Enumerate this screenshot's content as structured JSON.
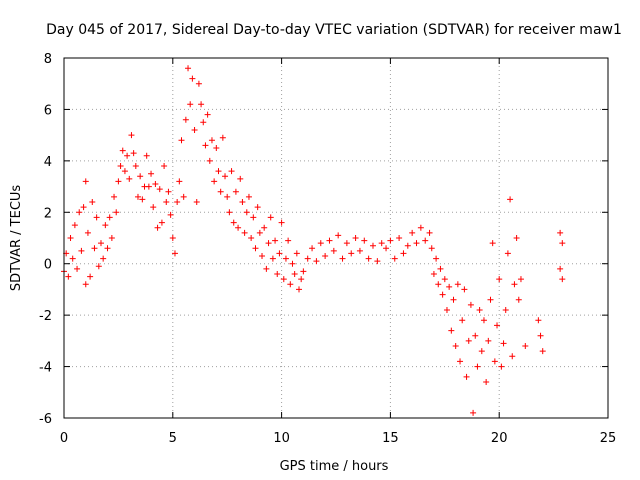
{
  "chart_data": {
    "type": "scatter",
    "title": "Day 045 of 2017, Sidereal Day-to-day VTEC variation (SDTVAR) for receiver maw1",
    "xlabel": "GPS time / hours",
    "ylabel": "SDTVAR / TECUs",
    "xlim": [
      0,
      25
    ],
    "ylim": [
      -6,
      8
    ],
    "xticks": [
      "0",
      "5",
      "10",
      "15",
      "20",
      "25"
    ],
    "yticks": [
      "-6",
      "-4",
      "-2",
      "0",
      "2",
      "4",
      "6",
      "8"
    ],
    "grid": true,
    "marker": "+",
    "color": "#ff0000",
    "series": [
      {
        "name": "maw1",
        "points": [
          [
            0.0,
            -0.3
          ],
          [
            0.1,
            0.4
          ],
          [
            0.2,
            -0.5
          ],
          [
            0.3,
            1.0
          ],
          [
            0.4,
            0.2
          ],
          [
            0.5,
            1.5
          ],
          [
            0.6,
            -0.2
          ],
          [
            0.7,
            2.0
          ],
          [
            0.8,
            0.5
          ],
          [
            0.9,
            2.2
          ],
          [
            1.0,
            -0.8
          ],
          [
            1.0,
            3.2
          ],
          [
            1.1,
            1.2
          ],
          [
            1.2,
            -0.5
          ],
          [
            1.3,
            2.4
          ],
          [
            1.4,
            0.6
          ],
          [
            1.5,
            1.8
          ],
          [
            1.6,
            -0.1
          ],
          [
            1.7,
            0.8
          ],
          [
            1.8,
            0.2
          ],
          [
            1.9,
            1.5
          ],
          [
            2.0,
            0.6
          ],
          [
            2.1,
            1.8
          ],
          [
            2.2,
            1.0
          ],
          [
            2.3,
            2.6
          ],
          [
            2.4,
            2.0
          ],
          [
            2.5,
            3.2
          ],
          [
            2.6,
            3.8
          ],
          [
            2.7,
            4.4
          ],
          [
            2.8,
            3.6
          ],
          [
            2.9,
            4.2
          ],
          [
            3.0,
            3.3
          ],
          [
            3.1,
            5.0
          ],
          [
            3.2,
            4.3
          ],
          [
            3.3,
            3.8
          ],
          [
            3.4,
            2.6
          ],
          [
            3.5,
            3.4
          ],
          [
            3.6,
            2.5
          ],
          [
            3.7,
            3.0
          ],
          [
            3.8,
            4.2
          ],
          [
            3.9,
            3.0
          ],
          [
            4.0,
            3.5
          ],
          [
            4.1,
            2.2
          ],
          [
            4.2,
            3.1
          ],
          [
            4.3,
            1.4
          ],
          [
            4.4,
            2.9
          ],
          [
            4.5,
            1.6
          ],
          [
            4.6,
            3.8
          ],
          [
            4.7,
            2.4
          ],
          [
            4.8,
            2.8
          ],
          [
            4.9,
            1.9
          ],
          [
            5.0,
            1.0
          ],
          [
            5.1,
            0.4
          ],
          [
            5.2,
            2.4
          ],
          [
            5.3,
            3.2
          ],
          [
            5.4,
            4.8
          ],
          [
            5.5,
            2.6
          ],
          [
            5.6,
            5.6
          ],
          [
            5.7,
            7.6
          ],
          [
            5.8,
            6.2
          ],
          [
            5.9,
            7.2
          ],
          [
            6.0,
            5.2
          ],
          [
            6.1,
            2.4
          ],
          [
            6.2,
            7.0
          ],
          [
            6.3,
            6.2
          ],
          [
            6.4,
            5.5
          ],
          [
            6.5,
            4.6
          ],
          [
            6.6,
            5.8
          ],
          [
            6.7,
            4.0
          ],
          [
            6.8,
            4.8
          ],
          [
            6.9,
            3.2
          ],
          [
            7.0,
            4.5
          ],
          [
            7.1,
            3.6
          ],
          [
            7.2,
            2.8
          ],
          [
            7.3,
            4.9
          ],
          [
            7.4,
            3.4
          ],
          [
            7.5,
            2.6
          ],
          [
            7.6,
            2.0
          ],
          [
            7.7,
            3.6
          ],
          [
            7.8,
            1.6
          ],
          [
            7.9,
            2.8
          ],
          [
            8.0,
            1.4
          ],
          [
            8.1,
            3.3
          ],
          [
            8.2,
            2.4
          ],
          [
            8.3,
            1.2
          ],
          [
            8.4,
            2.0
          ],
          [
            8.5,
            2.6
          ],
          [
            8.6,
            1.0
          ],
          [
            8.7,
            1.8
          ],
          [
            8.8,
            0.6
          ],
          [
            8.9,
            2.2
          ],
          [
            9.0,
            1.2
          ],
          [
            9.1,
            0.3
          ],
          [
            9.2,
            1.4
          ],
          [
            9.3,
            -0.2
          ],
          [
            9.4,
            0.8
          ],
          [
            9.5,
            1.8
          ],
          [
            9.6,
            0.2
          ],
          [
            9.7,
            0.9
          ],
          [
            9.8,
            -0.4
          ],
          [
            9.9,
            0.4
          ],
          [
            10.0,
            1.6
          ],
          [
            10.1,
            -0.6
          ],
          [
            10.2,
            0.2
          ],
          [
            10.3,
            0.9
          ],
          [
            10.4,
            -0.8
          ],
          [
            10.5,
            0.0
          ],
          [
            10.6,
            -0.4
          ],
          [
            10.7,
            0.4
          ],
          [
            10.8,
            -1.0
          ],
          [
            10.9,
            -0.6
          ],
          [
            11.0,
            -0.3
          ],
          [
            11.2,
            0.2
          ],
          [
            11.4,
            0.6
          ],
          [
            11.6,
            0.1
          ],
          [
            11.8,
            0.8
          ],
          [
            12.0,
            0.3
          ],
          [
            12.2,
            0.9
          ],
          [
            12.4,
            0.5
          ],
          [
            12.6,
            1.1
          ],
          [
            12.8,
            0.2
          ],
          [
            13.0,
            0.8
          ],
          [
            13.2,
            0.4
          ],
          [
            13.4,
            1.0
          ],
          [
            13.6,
            0.5
          ],
          [
            13.8,
            0.9
          ],
          [
            14.0,
            0.2
          ],
          [
            14.2,
            0.7
          ],
          [
            14.4,
            0.1
          ],
          [
            14.6,
            0.8
          ],
          [
            14.8,
            0.6
          ],
          [
            15.0,
            0.9
          ],
          [
            15.2,
            0.2
          ],
          [
            15.4,
            1.0
          ],
          [
            15.6,
            0.4
          ],
          [
            15.8,
            0.7
          ],
          [
            16.0,
            1.2
          ],
          [
            16.2,
            0.8
          ],
          [
            16.4,
            1.4
          ],
          [
            16.6,
            0.9
          ],
          [
            16.8,
            1.2
          ],
          [
            16.9,
            0.6
          ],
          [
            17.0,
            -0.4
          ],
          [
            17.1,
            0.2
          ],
          [
            17.2,
            -0.8
          ],
          [
            17.3,
            -0.2
          ],
          [
            17.4,
            -1.2
          ],
          [
            17.5,
            -0.6
          ],
          [
            17.6,
            -1.8
          ],
          [
            17.7,
            -0.9
          ],
          [
            17.8,
            -2.6
          ],
          [
            17.9,
            -1.4
          ],
          [
            18.0,
            -3.2
          ],
          [
            18.1,
            -0.8
          ],
          [
            18.2,
            -3.8
          ],
          [
            18.3,
            -2.2
          ],
          [
            18.4,
            -1.0
          ],
          [
            18.5,
            -4.4
          ],
          [
            18.6,
            -3.0
          ],
          [
            18.7,
            -1.6
          ],
          [
            18.8,
            -5.8
          ],
          [
            18.9,
            -2.8
          ],
          [
            19.0,
            -4.0
          ],
          [
            19.1,
            -1.8
          ],
          [
            19.2,
            -3.4
          ],
          [
            19.3,
            -2.2
          ],
          [
            19.4,
            -4.6
          ],
          [
            19.5,
            -3.0
          ],
          [
            19.6,
            -1.4
          ],
          [
            19.7,
            0.8
          ],
          [
            19.8,
            -3.8
          ],
          [
            19.9,
            -2.4
          ],
          [
            20.0,
            -0.6
          ],
          [
            20.1,
            -4.0
          ],
          [
            20.2,
            -3.1
          ],
          [
            20.3,
            -1.8
          ],
          [
            20.4,
            0.4
          ],
          [
            20.5,
            2.5
          ],
          [
            20.6,
            -3.6
          ],
          [
            20.7,
            -0.8
          ],
          [
            20.8,
            1.0
          ],
          [
            20.9,
            -1.4
          ],
          [
            21.0,
            -0.6
          ],
          [
            21.2,
            -3.2
          ],
          [
            21.8,
            -2.2
          ],
          [
            21.9,
            -2.8
          ],
          [
            22.0,
            -3.4
          ],
          [
            22.8,
            1.2
          ],
          [
            22.9,
            -0.6
          ],
          [
            22.9,
            0.8
          ],
          [
            22.8,
            -0.2
          ]
        ]
      }
    ]
  }
}
